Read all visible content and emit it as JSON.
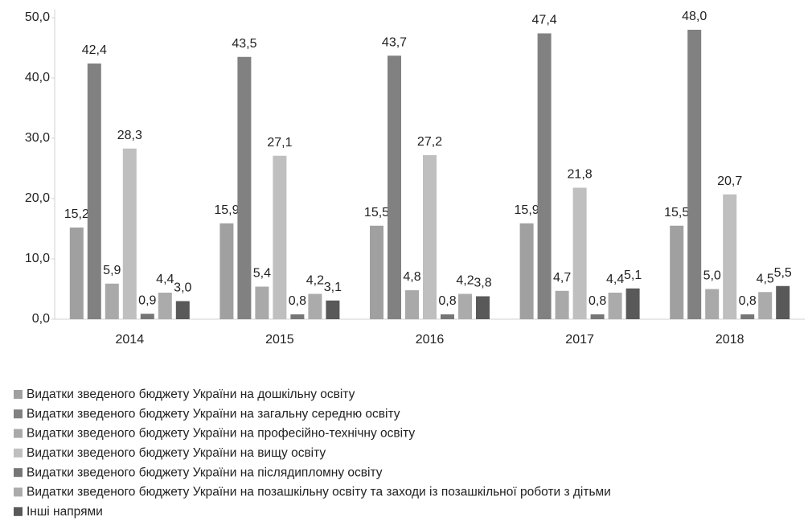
{
  "chart_data": {
    "type": "bar",
    "categories": [
      "2014",
      "2015",
      "2016",
      "2017",
      "2018"
    ],
    "series": [
      {
        "name": "Видатки зведеного бюджету України на дошкільну освіту",
        "color": "#a0a0a0",
        "values": [
          15.2,
          15.9,
          15.5,
          15.9,
          15.5
        ],
        "value_labels": [
          "15,2",
          "15,9",
          "15,5",
          "15,9",
          "15,5"
        ]
      },
      {
        "name": "Видатки зведеного бюджету України на загальну середню освіту",
        "color": "#818181",
        "values": [
          42.4,
          43.5,
          43.7,
          47.4,
          48.0
        ],
        "value_labels": [
          "42,4",
          "43,5",
          "43,7",
          "47,4",
          "48,0"
        ]
      },
      {
        "name": "Видатки зведеного бюджету України на професійно-технічну освіту",
        "color": "#a9a9a9",
        "values": [
          5.9,
          5.4,
          4.8,
          4.7,
          5.0
        ],
        "value_labels": [
          "5,9",
          "5,4",
          "4,8",
          "4,7",
          "5,0"
        ]
      },
      {
        "name": "Видатки зведеного бюджету України на вищу освіту",
        "color": "#bfbfbf",
        "values": [
          28.3,
          27.1,
          27.2,
          21.8,
          20.7
        ],
        "value_labels": [
          "28,3",
          "27,1",
          "27,2",
          "21,8",
          "20,7"
        ]
      },
      {
        "name": "Видатки зведеного бюджету України на післядипломну освіту",
        "color": "#767676",
        "values": [
          0.9,
          0.8,
          0.8,
          0.8,
          0.8
        ],
        "value_labels": [
          "0,9",
          "0,8",
          "0,8",
          "0,8",
          "0,8"
        ]
      },
      {
        "name": "Видатки зведеного бюджету України на позашкільну освіту та заходи із позашкільної роботи з дітьми",
        "color": "#ababab",
        "values": [
          4.4,
          4.2,
          4.2,
          4.4,
          4.5
        ],
        "value_labels": [
          "4,4",
          "4,2",
          "4,2",
          "4,4",
          "4,5"
        ]
      },
      {
        "name": "Інші напрями",
        "color": "#595959",
        "values": [
          3.0,
          3.1,
          3.8,
          5.1,
          5.5
        ],
        "value_labels": [
          "3,0",
          "3,1",
          "3,8",
          "5,1",
          "5,5"
        ]
      }
    ],
    "ylim": [
      0,
      50
    ],
    "yticks": [
      {
        "value": 0,
        "label": "0,0"
      },
      {
        "value": 10,
        "label": "10,0"
      },
      {
        "value": 20,
        "label": "20,0"
      },
      {
        "value": 30,
        "label": "30,0"
      },
      {
        "value": 40,
        "label": "40,0"
      },
      {
        "value": 50,
        "label": "50,0"
      }
    ]
  }
}
